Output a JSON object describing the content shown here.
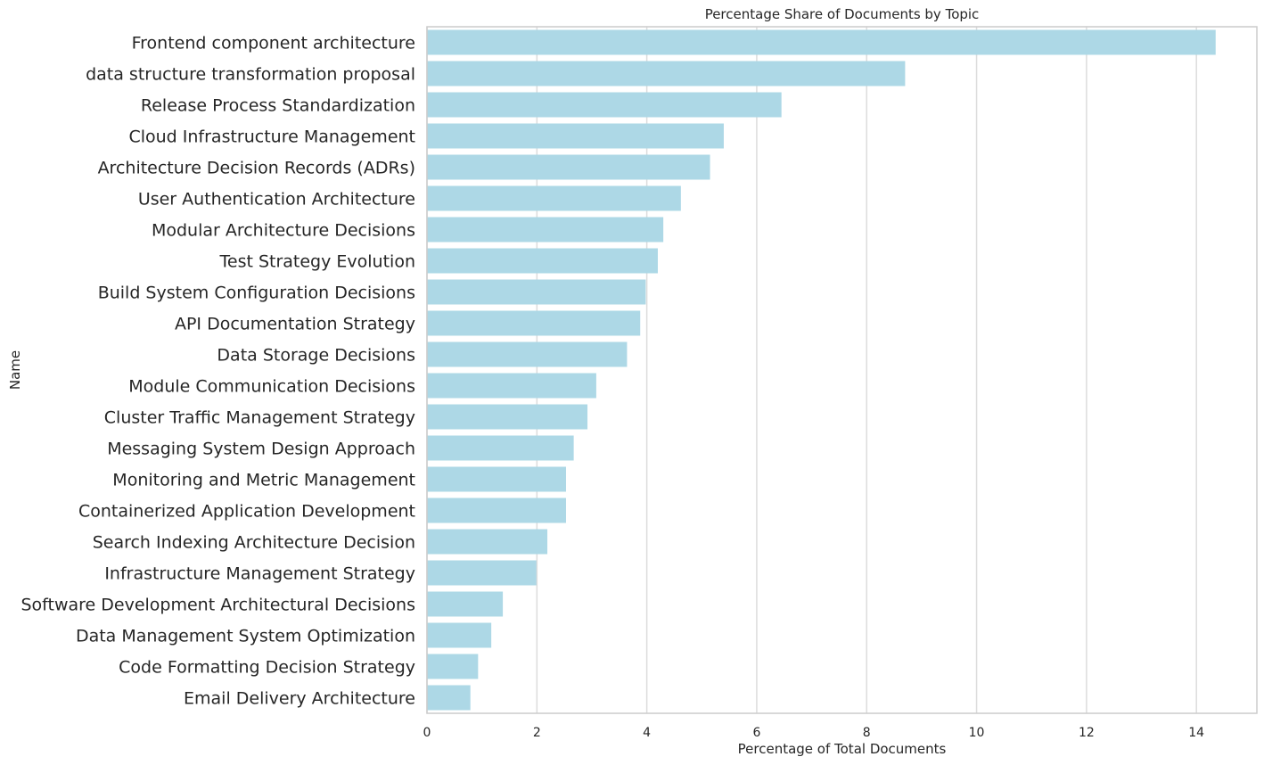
{
  "chart_data": {
    "type": "bar",
    "orientation": "horizontal",
    "title": "Percentage Share of Documents by Topic",
    "xlabel": "Percentage of Total Documents",
    "ylabel": "Name",
    "xlim": [
      0,
      15.1
    ],
    "xticks": [
      0,
      2,
      4,
      6,
      8,
      10,
      12,
      14
    ],
    "grid": "vertical",
    "bar_color": "#add8e6",
    "categories": [
      "Frontend component architecture",
      "data structure transformation proposal",
      "Release Process Standardization",
      "Cloud Infrastructure Management",
      "Architecture Decision Records (ADRs)",
      "User Authentication Architecture",
      "Modular Architecture Decisions",
      "Test Strategy Evolution",
      "Build System Configuration Decisions",
      "API Documentation Strategy",
      "Data Storage Decisions",
      "Module Communication Decisions",
      "Cluster Traffic Management Strategy",
      "Messaging System Design Approach",
      "Monitoring and Metric Management",
      "Containerized Application Development",
      "Search Indexing Architecture Decision",
      "Infrastructure Management Strategy",
      "Software Development Architectural Decisions",
      "Data Management System Optimization",
      "Code Formatting Decision Strategy",
      "Email Delivery Architecture"
    ],
    "values": [
      14.35,
      8.7,
      6.45,
      5.4,
      5.15,
      4.62,
      4.3,
      4.2,
      3.98,
      3.88,
      3.64,
      3.08,
      2.92,
      2.67,
      2.53,
      2.53,
      2.19,
      1.99,
      1.38,
      1.17,
      0.93,
      0.79
    ]
  }
}
